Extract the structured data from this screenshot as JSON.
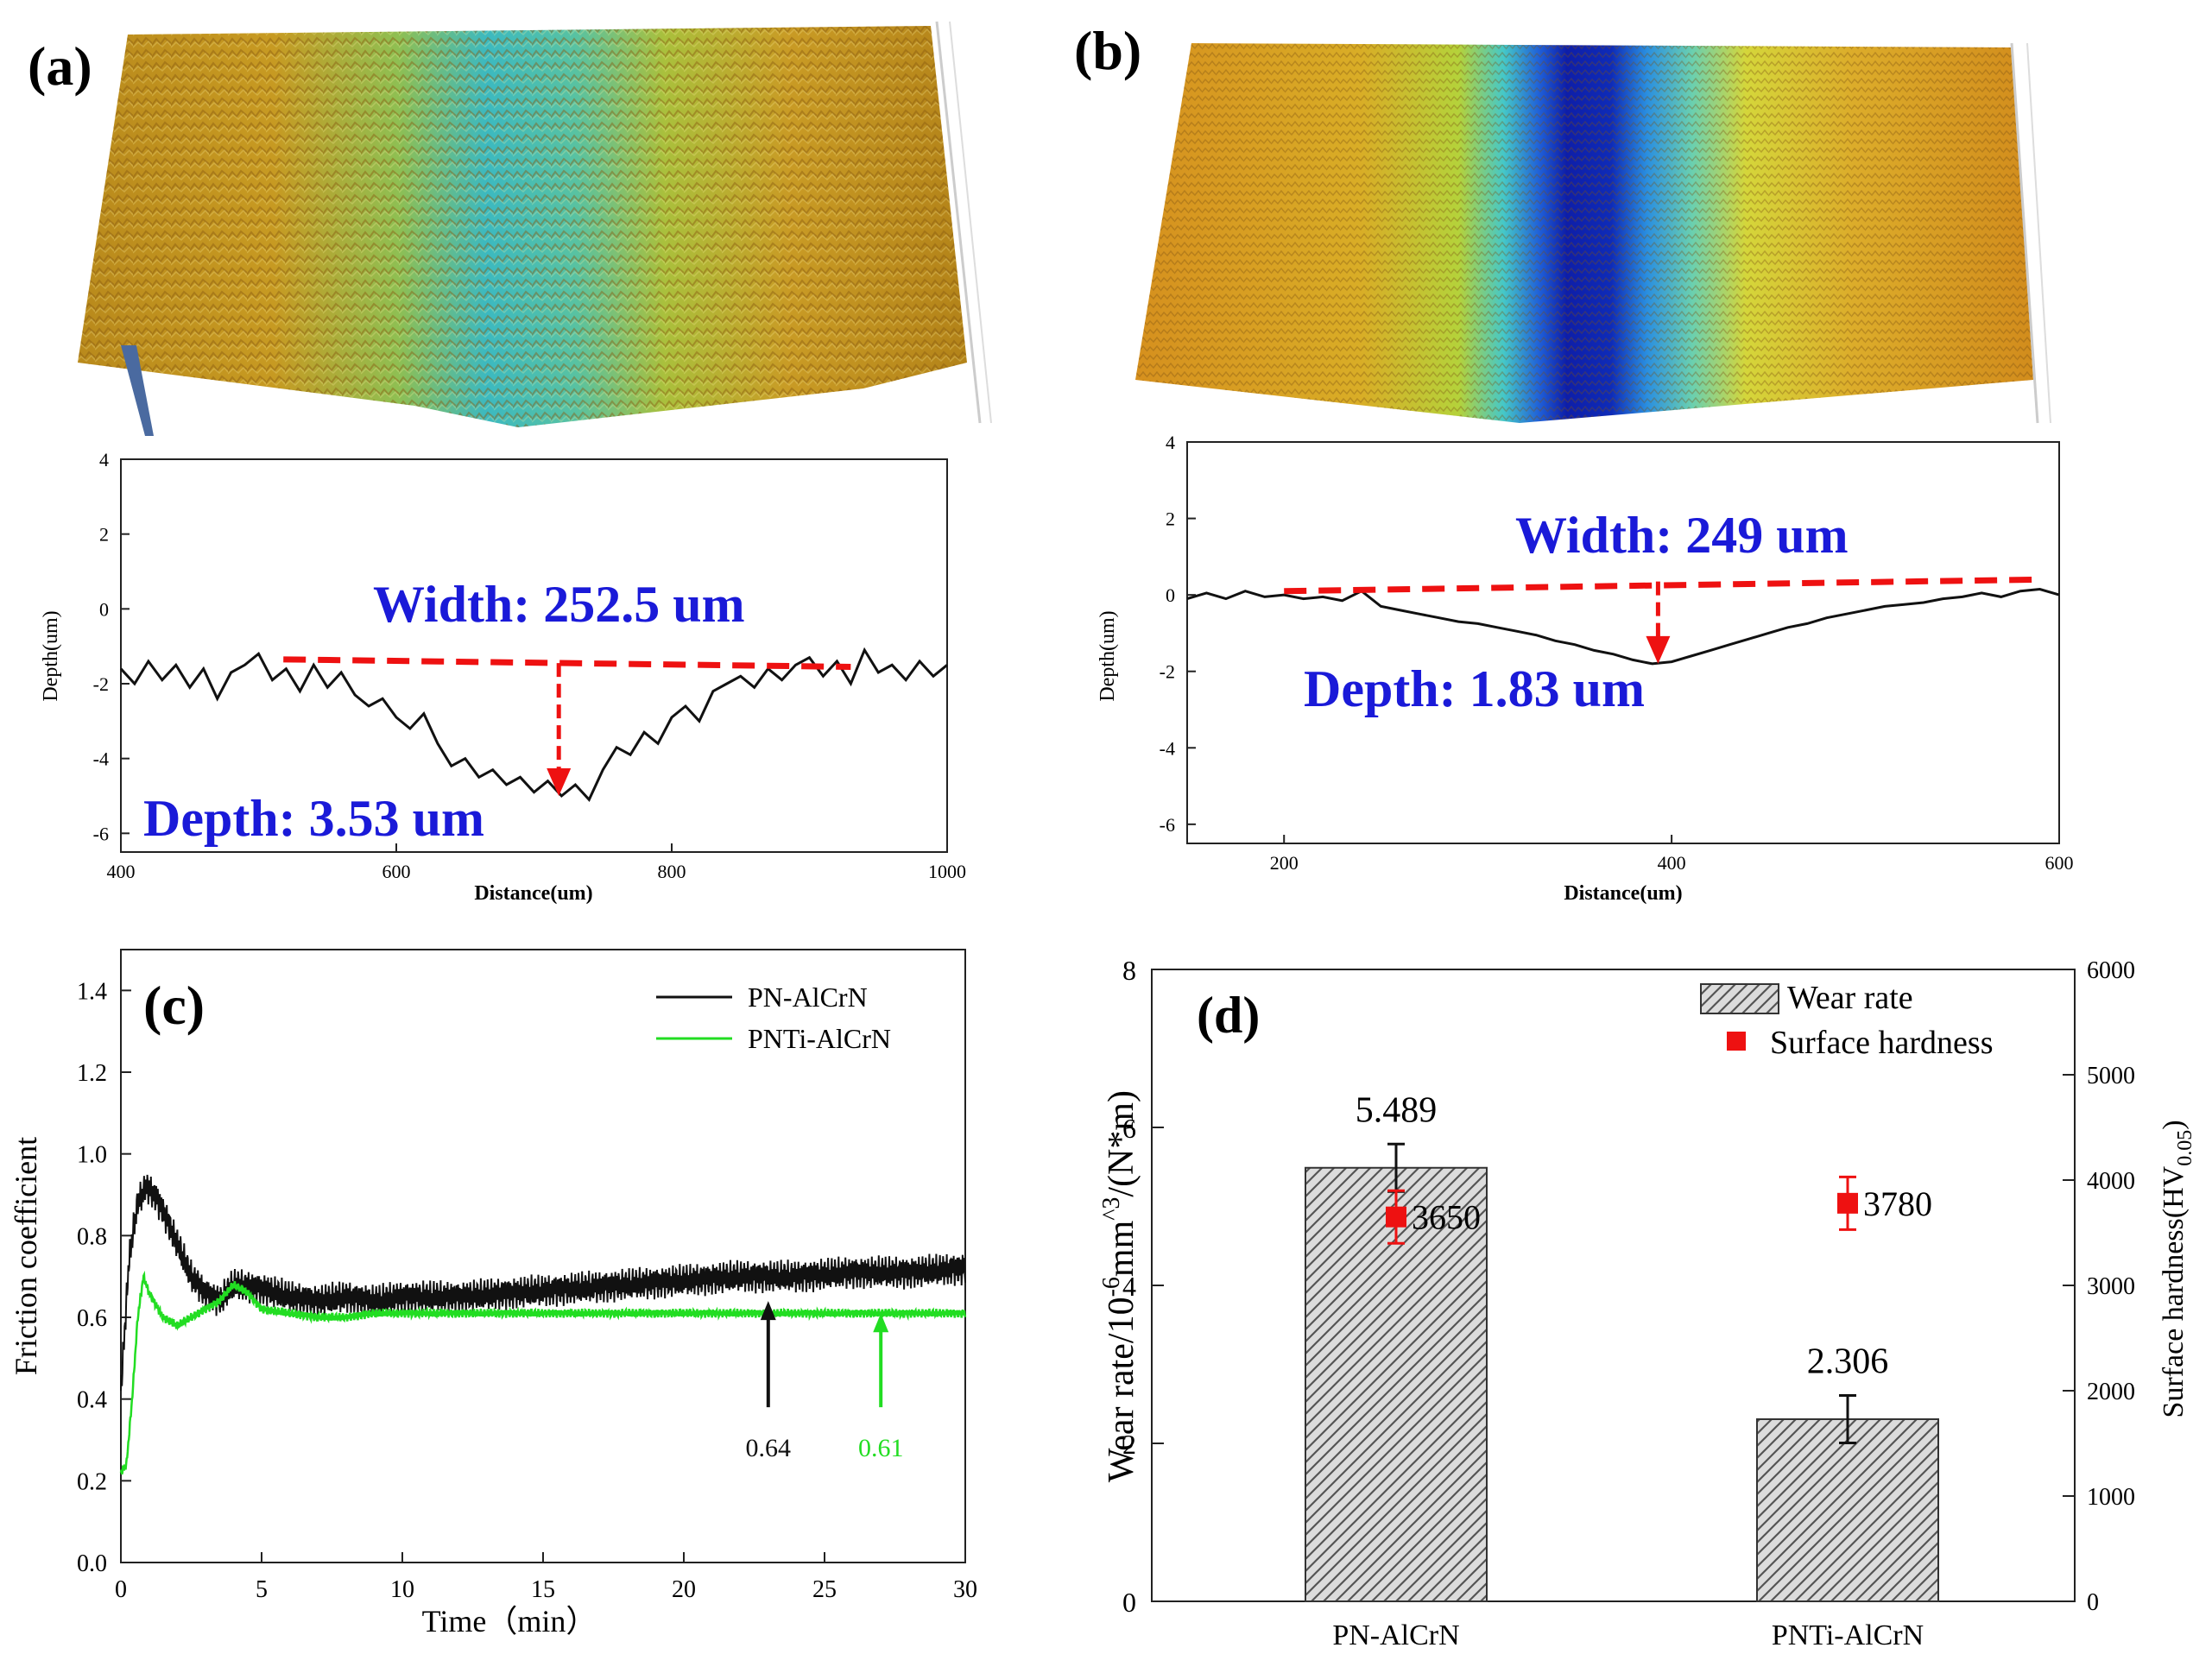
{
  "colors": {
    "axis": "#222222",
    "trace": "#111111",
    "red": "#ee1111",
    "blue_text": "#1a1ad8",
    "green": "#22dd22",
    "bar_fill": "#d8d8d8"
  },
  "chart_data": [
    {
      "panel": "(a)",
      "type": "line",
      "surface_image_caption": "3D profile of wear track",
      "xlabel": "Distance(um)",
      "ylabel": "Depth(um)",
      "xlim": [
        400,
        1000
      ],
      "ylim": [
        -6.5,
        4
      ],
      "xticks": [
        "400",
        "600",
        "800",
        "1000"
      ],
      "yticks": [
        "4",
        "2",
        "0",
        "-2",
        "-4",
        "-6"
      ],
      "annotations": {
        "width": "Width: 252.5 um",
        "depth": "Depth: 3.53 um"
      },
      "width_line": {
        "x": [
          518,
          930
        ],
        "y": [
          -1.35,
          -1.55
        ]
      },
      "depth_arrow": {
        "x": 718,
        "y_from": -1.45,
        "y_to": -5.0
      },
      "profile": {
        "x": [
          400,
          410,
          420,
          430,
          440,
          450,
          460,
          470,
          480,
          490,
          500,
          510,
          520,
          530,
          540,
          550,
          560,
          570,
          580,
          590,
          600,
          610,
          620,
          630,
          640,
          650,
          660,
          670,
          680,
          690,
          700,
          710,
          720,
          730,
          740,
          750,
          760,
          770,
          780,
          790,
          800,
          810,
          820,
          830,
          840,
          850,
          860,
          870,
          880,
          890,
          900,
          910,
          920,
          930,
          940,
          950,
          960,
          970,
          980,
          990,
          1000
        ],
        "y": [
          -1.6,
          -2.0,
          -1.4,
          -1.9,
          -1.5,
          -2.1,
          -1.6,
          -2.4,
          -1.7,
          -1.5,
          -1.2,
          -1.9,
          -1.6,
          -2.2,
          -1.5,
          -2.1,
          -1.7,
          -2.3,
          -2.6,
          -2.4,
          -2.9,
          -3.2,
          -2.8,
          -3.6,
          -4.2,
          -4.0,
          -4.5,
          -4.3,
          -4.7,
          -4.5,
          -4.9,
          -4.6,
          -5.0,
          -4.7,
          -5.1,
          -4.3,
          -3.7,
          -3.9,
          -3.3,
          -3.6,
          -2.9,
          -2.6,
          -3.0,
          -2.2,
          -2.0,
          -1.8,
          -2.1,
          -1.6,
          -1.9,
          -1.5,
          -1.3,
          -1.8,
          -1.4,
          -2.0,
          -1.1,
          -1.7,
          -1.5,
          -1.9,
          -1.4,
          -1.8,
          -1.5
        ]
      }
    },
    {
      "panel": "(b)",
      "type": "line",
      "surface_image_caption": "3D profile of wear track",
      "xlabel": "Distance(um)",
      "ylabel": "Depth(um)",
      "xlim": [
        150,
        600
      ],
      "ylim": [
        -6.5,
        4
      ],
      "xticks": [
        "200",
        "400",
        "600"
      ],
      "yticks": [
        "4",
        "2",
        "0",
        "-2",
        "-4",
        "-6"
      ],
      "annotations": {
        "width": "Width: 249 um",
        "depth": "Depth: 1.83 um"
      },
      "width_line": {
        "x": [
          200,
          587
        ],
        "y": [
          0.1,
          0.4
        ]
      },
      "depth_arrow": {
        "x": 393,
        "y_from": 0.35,
        "y_to": -1.8
      },
      "profile": {
        "x": [
          150,
          160,
          170,
          180,
          190,
          200,
          210,
          220,
          230,
          240,
          250,
          260,
          270,
          280,
          290,
          300,
          310,
          320,
          330,
          340,
          350,
          360,
          370,
          380,
          390,
          400,
          410,
          420,
          430,
          440,
          450,
          460,
          470,
          480,
          490,
          500,
          510,
          520,
          530,
          540,
          550,
          560,
          570,
          580,
          590,
          600
        ],
        "y": [
          -0.1,
          0.05,
          -0.1,
          0.1,
          -0.05,
          0.0,
          -0.1,
          -0.05,
          -0.15,
          0.1,
          -0.3,
          -0.4,
          -0.5,
          -0.6,
          -0.7,
          -0.75,
          -0.85,
          -0.95,
          -1.05,
          -1.2,
          -1.3,
          -1.45,
          -1.55,
          -1.7,
          -1.8,
          -1.75,
          -1.6,
          -1.45,
          -1.3,
          -1.15,
          -1.0,
          -0.85,
          -0.75,
          -0.6,
          -0.5,
          -0.4,
          -0.3,
          -0.25,
          -0.2,
          -0.1,
          -0.05,
          0.05,
          -0.05,
          0.1,
          0.15,
          0.0
        ]
      }
    },
    {
      "panel": "(c)",
      "type": "line",
      "xlabel": "Time（min）",
      "ylabel": "Friction coefficient",
      "xlim": [
        0,
        30
      ],
      "ylim": [
        0,
        1.5
      ],
      "xticks": [
        "0",
        "5",
        "10",
        "15",
        "20",
        "25",
        "30"
      ],
      "yticks": [
        "0.0",
        "0.2",
        "0.4",
        "0.6",
        "0.8",
        "1.0",
        "1.2",
        "1.4"
      ],
      "legend_position": "top-right",
      "series": [
        {
          "name": "PN-AlCrN",
          "color": "#111111",
          "x": [
            0,
            0.3,
            0.6,
            0.9,
            1.2,
            1.5,
            2.0,
            2.5,
            3.0,
            3.5,
            4.0,
            5,
            6,
            7,
            8,
            9,
            10,
            12,
            14,
            16,
            18,
            20,
            22,
            24,
            26,
            28,
            30
          ],
          "y": [
            0.42,
            0.75,
            0.88,
            0.92,
            0.9,
            0.86,
            0.78,
            0.7,
            0.66,
            0.64,
            0.68,
            0.67,
            0.65,
            0.64,
            0.65,
            0.64,
            0.65,
            0.65,
            0.66,
            0.67,
            0.68,
            0.69,
            0.7,
            0.7,
            0.71,
            0.71,
            0.72
          ],
          "oscillation": 0.03
        },
        {
          "name": "PNTi-AlCrN",
          "color": "#22dd22",
          "x": [
            0,
            0.2,
            0.4,
            0.6,
            0.8,
            1.0,
            1.5,
            2.0,
            2.5,
            3.0,
            3.5,
            4.0,
            4.5,
            5,
            6,
            7,
            8,
            9,
            10,
            12,
            15,
            20,
            25,
            30
          ],
          "y": [
            0.22,
            0.24,
            0.4,
            0.6,
            0.7,
            0.66,
            0.6,
            0.58,
            0.6,
            0.62,
            0.64,
            0.68,
            0.66,
            0.62,
            0.61,
            0.6,
            0.6,
            0.61,
            0.61,
            0.61,
            0.61,
            0.61,
            0.61,
            0.61
          ],
          "oscillation": 0.008
        }
      ],
      "annotations": [
        {
          "label": "0.64",
          "x": 23,
          "color": "#111111"
        },
        {
          "label": "0.61",
          "x": 27,
          "color": "#22dd22"
        }
      ]
    },
    {
      "panel": "(d)",
      "type": "bar",
      "categories": [
        "PN-AlCrN",
        "PNTi-AlCrN"
      ],
      "ylabel_left": "Wear rate/10",
      "ylabel_left_sup": "-6",
      "ylabel_left_mid": "mm",
      "ylabel_left_sup2": "^3",
      "ylabel_left_end": "/(N*m)",
      "ylabel_right": "Surface hardness(HV",
      "ylabel_right_sub": "0.05",
      "ylabel_right_end": ")",
      "ylim_left": [
        0,
        8
      ],
      "ylim_right": [
        0,
        6000
      ],
      "yticks_left": [
        "0",
        "2",
        "4",
        "6",
        "8"
      ],
      "yticks_right": [
        "0",
        "1000",
        "2000",
        "3000",
        "4000",
        "5000",
        "6000"
      ],
      "legend_position": "top-right",
      "series": [
        {
          "name": "Wear rate",
          "values": [
            5.489,
            2.306
          ],
          "labels": [
            "5.489",
            "2.306"
          ],
          "errors": [
            0.3,
            0.3
          ]
        },
        {
          "name": "Surface hardness",
          "values": [
            3650,
            3780
          ],
          "labels": [
            "3650",
            "3780"
          ],
          "errors": [
            250,
            250
          ]
        }
      ]
    }
  ]
}
